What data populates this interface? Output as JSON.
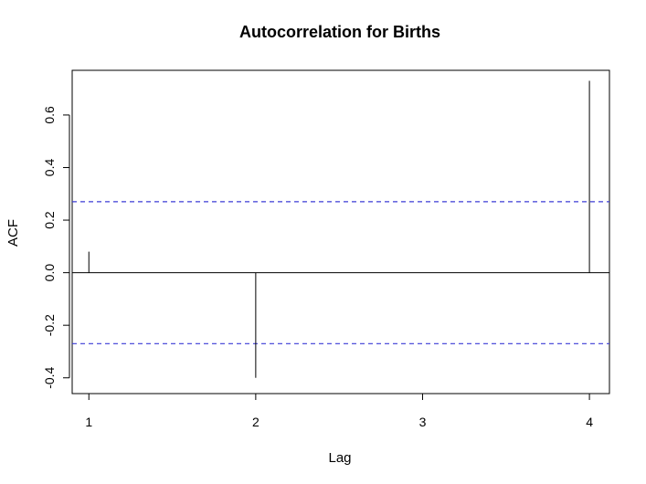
{
  "chart_data": {
    "type": "bar",
    "title": "Autocorrelation for Births",
    "xlabel": "Lag",
    "ylabel": "ACF",
    "x": [
      1,
      2,
      3,
      4
    ],
    "values": [
      0.08,
      -0.4,
      0.0,
      0.73
    ],
    "xticks": [
      "1",
      "2",
      "3",
      "4"
    ],
    "yticks": [
      "-0.4",
      "-0.2",
      "0.0",
      "0.2",
      "0.4",
      "0.6"
    ],
    "ytick_values": [
      -0.4,
      -0.2,
      0.0,
      0.2,
      0.4,
      0.6
    ],
    "xlim": [
      0.9,
      4.12
    ],
    "ylim": [
      -0.46,
      0.77
    ],
    "confidence_bound": 0.27,
    "confidence_color": "#3b3bd6",
    "bar_color": "#000000",
    "grid": false,
    "legend": "none"
  }
}
